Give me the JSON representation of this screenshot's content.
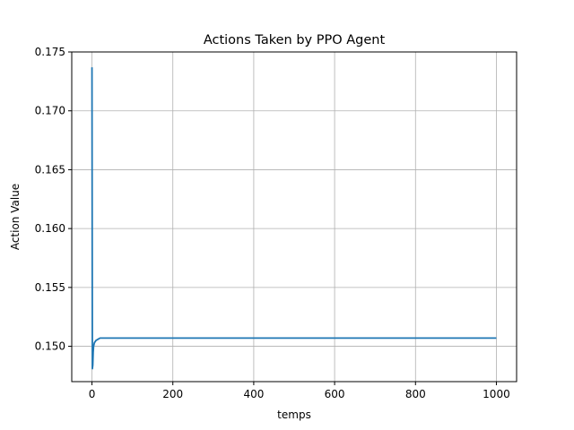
{
  "chart_data": {
    "type": "line",
    "title": "Actions Taken by PPO Agent",
    "xlabel": "temps",
    "ylabel": "Action Value",
    "xlim": [
      -50,
      1050
    ],
    "ylim": [
      0.147,
      0.175
    ],
    "grid": true,
    "xticks": [
      0,
      200,
      400,
      600,
      800,
      1000
    ],
    "yticks": [
      0.15,
      0.155,
      0.16,
      0.165,
      0.17,
      0.175
    ],
    "xtick_labels": [
      "0",
      "200",
      "400",
      "600",
      "800",
      "1000"
    ],
    "ytick_labels": [
      "0.150",
      "0.155",
      "0.160",
      "0.165",
      "0.170",
      "0.175"
    ],
    "series": [
      {
        "color": "#1f77b4",
        "x": [
          0,
          1,
          2,
          3,
          4,
          6,
          8,
          10,
          15,
          20,
          30,
          50,
          100,
          150,
          200,
          300,
          400,
          500,
          600,
          700,
          800,
          900,
          1000
        ],
        "y": [
          0.1737,
          0.1481,
          0.1484,
          0.1495,
          0.15,
          0.1503,
          0.1504,
          0.1505,
          0.1506,
          0.1507,
          0.1507,
          0.1507,
          0.1507,
          0.1507,
          0.1507,
          0.1507,
          0.1507,
          0.1507,
          0.1507,
          0.1507,
          0.1507,
          0.1507,
          0.1507
        ]
      }
    ]
  }
}
